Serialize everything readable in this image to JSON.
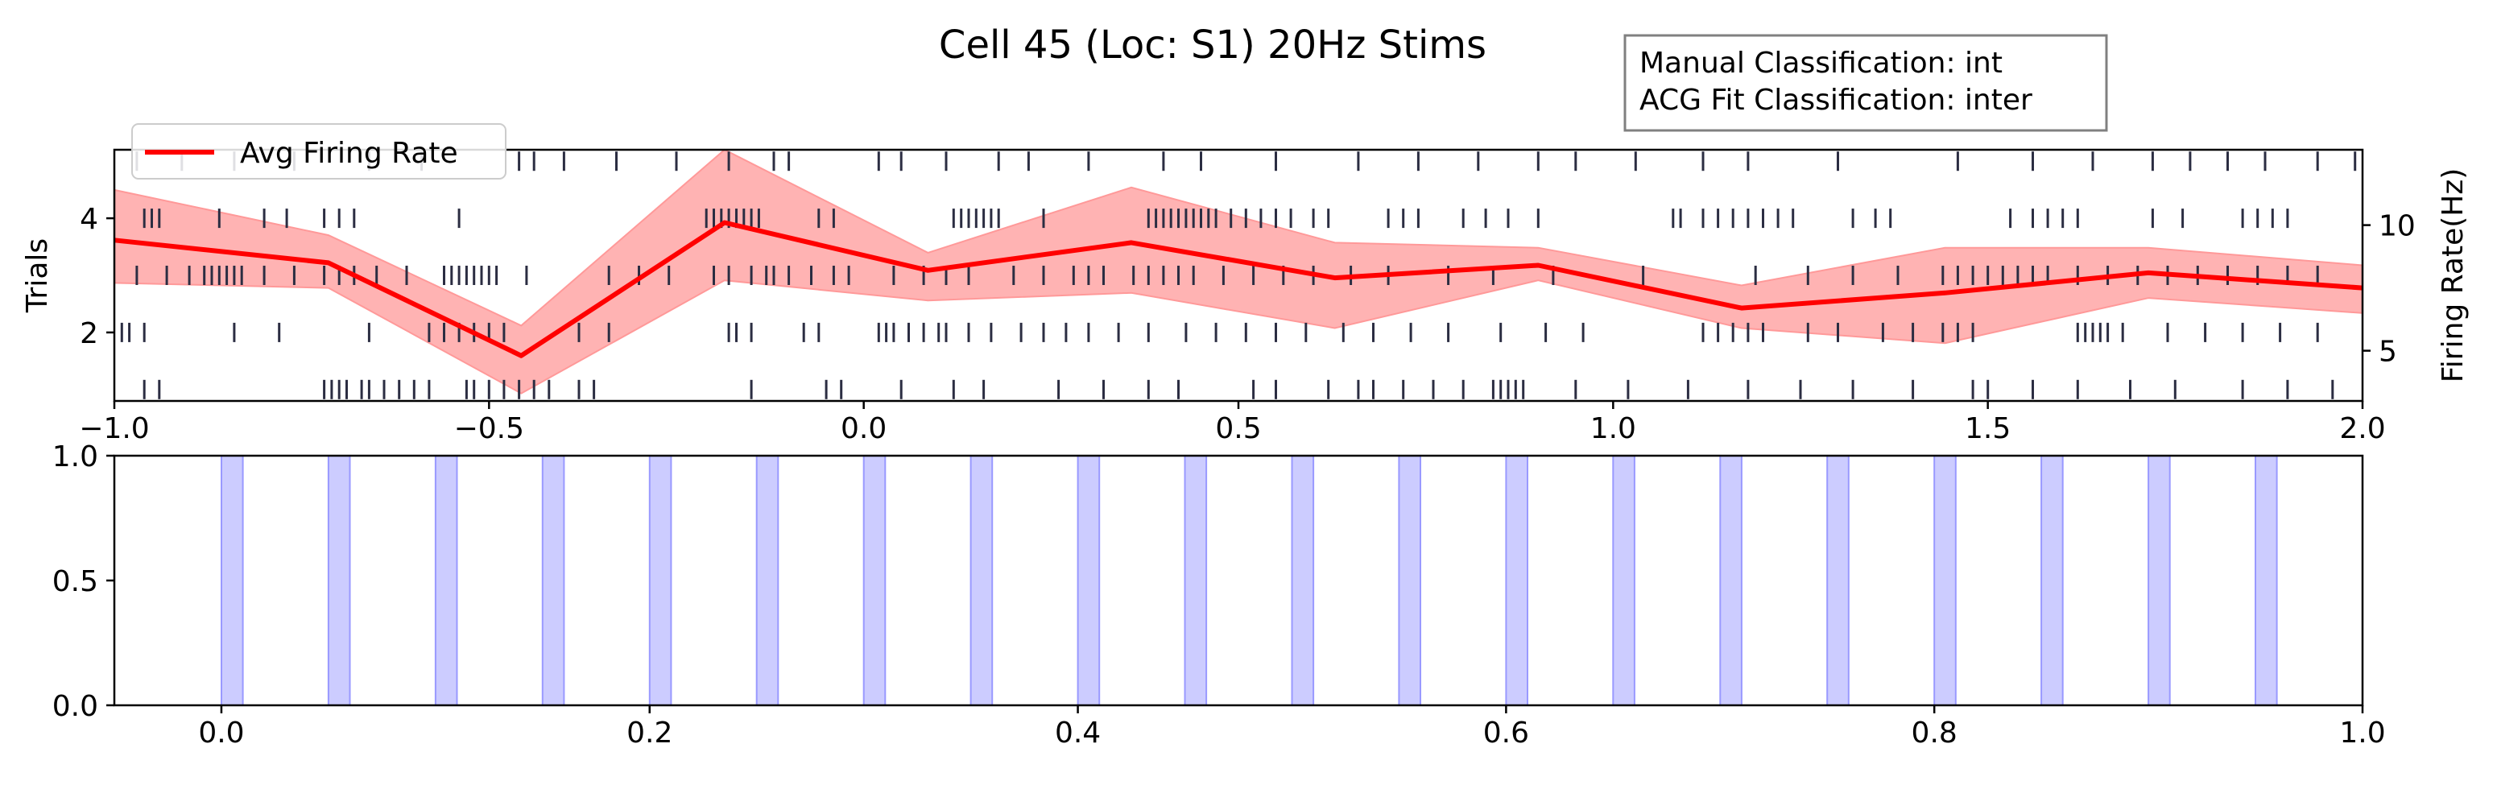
{
  "title": "Cell 45 (Loc: S1) 20Hz Stims",
  "annotation": {
    "lines": [
      "Manual Classification: int",
      "ACG Fit Classification: inter"
    ]
  },
  "chart_data": [
    {
      "type": "raster",
      "xlim": [
        -1.0,
        2.0
      ],
      "ylim": [
        0.8,
        5.2
      ],
      "ylim_right": [
        3.0,
        13.0
      ],
      "xticks": [
        -1.0,
        -0.5,
        0.0,
        0.5,
        1.0,
        1.5,
        2.0
      ],
      "xtick_labels": [
        "−1.0",
        "−0.5",
        "0.0",
        "0.5",
        "1.0",
        "1.5",
        "2.0"
      ],
      "yticks": [
        2,
        4
      ],
      "ytick_labels": [
        "2",
        "4"
      ],
      "yticks_right": [
        5,
        10
      ],
      "ytick_labels_right": [
        "5",
        "10"
      ],
      "ylabel": "Trials",
      "ylabel_right": "Firing Rate(Hz)",
      "legend": {
        "label": "Avg Firing Rate",
        "position": "upper-left"
      },
      "colors": {
        "spike": "#2b2d42",
        "rate": "#ff0000",
        "band": "#ff9999"
      },
      "trials": [
        {
          "trial": 1,
          "spikes": [
            -0.96,
            -0.94,
            -0.72,
            -0.71,
            -0.7,
            -0.69,
            -0.67,
            -0.66,
            -0.64,
            -0.62,
            -0.6,
            -0.58,
            -0.53,
            -0.52,
            -0.5,
            -0.48,
            -0.46,
            -0.44,
            -0.42,
            -0.38,
            -0.36,
            -0.15,
            -0.05,
            -0.03,
            0.05,
            0.12,
            0.16,
            0.26,
            0.32,
            0.38,
            0.42,
            0.52,
            0.55,
            0.62,
            0.66,
            0.68,
            0.72,
            0.76,
            0.8,
            0.84,
            0.85,
            0.86,
            0.87,
            0.88,
            0.95,
            1.02,
            1.1,
            1.18,
            1.25,
            1.32,
            1.4,
            1.48,
            1.5,
            1.56,
            1.62,
            1.69,
            1.75,
            1.84,
            1.9,
            1.96
          ]
        },
        {
          "trial": 2,
          "spikes": [
            -0.99,
            -0.98,
            -0.96,
            -0.84,
            -0.78,
            -0.66,
            -0.58,
            -0.56,
            -0.54,
            -0.52,
            -0.5,
            -0.48,
            -0.38,
            -0.34,
            -0.18,
            -0.17,
            -0.15,
            -0.08,
            -0.06,
            0.02,
            0.03,
            0.04,
            0.06,
            0.08,
            0.1,
            0.11,
            0.14,
            0.17,
            0.21,
            0.24,
            0.27,
            0.3,
            0.34,
            0.38,
            0.43,
            0.47,
            0.51,
            0.55,
            0.59,
            0.64,
            0.68,
            0.73,
            0.78,
            0.85,
            0.91,
            0.96,
            1.12,
            1.14,
            1.16,
            1.18,
            1.2,
            1.26,
            1.3,
            1.36,
            1.4,
            1.44,
            1.46,
            1.48,
            1.62,
            1.63,
            1.64,
            1.65,
            1.66,
            1.68,
            1.74,
            1.79,
            1.84,
            1.89,
            1.94
          ]
        },
        {
          "trial": 3,
          "spikes": [
            -0.97,
            -0.93,
            -0.9,
            -0.88,
            -0.87,
            -0.86,
            -0.85,
            -0.84,
            -0.83,
            -0.8,
            -0.76,
            -0.72,
            -0.7,
            -0.68,
            -0.65,
            -0.61,
            -0.56,
            -0.55,
            -0.54,
            -0.53,
            -0.52,
            -0.51,
            -0.5,
            -0.49,
            -0.45,
            -0.34,
            -0.3,
            -0.26,
            -0.2,
            -0.18,
            -0.15,
            -0.13,
            -0.12,
            -0.1,
            -0.07,
            -0.04,
            -0.02,
            0.04,
            0.08,
            0.11,
            0.14,
            0.2,
            0.24,
            0.28,
            0.3,
            0.32,
            0.36,
            0.38,
            0.4,
            0.42,
            0.44,
            0.48,
            0.52,
            0.56,
            0.6,
            0.65,
            0.7,
            0.78,
            0.84,
            0.92,
            1.04,
            1.19,
            1.26,
            1.32,
            1.38,
            1.44,
            1.46,
            1.48,
            1.5,
            1.52,
            1.54,
            1.56,
            1.58,
            1.62,
            1.66,
            1.7,
            1.74,
            1.78,
            1.82,
            1.86,
            1.9,
            1.94
          ]
        },
        {
          "trial": 4,
          "spikes": [
            -0.96,
            -0.95,
            -0.94,
            -0.86,
            -0.8,
            -0.77,
            -0.72,
            -0.7,
            -0.68,
            -0.54,
            -0.21,
            -0.2,
            -0.19,
            -0.18,
            -0.17,
            -0.16,
            -0.15,
            -0.14,
            -0.06,
            -0.04,
            0.12,
            0.13,
            0.14,
            0.15,
            0.16,
            0.17,
            0.18,
            0.24,
            0.38,
            0.39,
            0.4,
            0.41,
            0.42,
            0.43,
            0.44,
            0.45,
            0.46,
            0.47,
            0.49,
            0.51,
            0.53,
            0.55,
            0.57,
            0.6,
            0.62,
            0.7,
            0.72,
            0.74,
            0.8,
            0.83,
            0.86,
            0.9,
            1.08,
            1.09,
            1.12,
            1.14,
            1.16,
            1.18,
            1.2,
            1.22,
            1.24,
            1.32,
            1.35,
            1.37,
            1.53,
            1.56,
            1.58,
            1.6,
            1.62,
            1.72,
            1.76,
            1.84,
            1.86,
            1.88,
            1.9
          ]
        },
        {
          "trial": 5,
          "spikes": [
            -0.97,
            -0.91,
            -0.84,
            -0.76,
            -0.66,
            -0.59,
            -0.46,
            -0.44,
            -0.4,
            -0.33,
            -0.25,
            -0.18,
            -0.12,
            -0.1,
            0.02,
            0.05,
            0.11,
            0.18,
            0.22,
            0.3,
            0.4,
            0.45,
            0.55,
            0.66,
            0.74,
            0.82,
            0.9,
            0.95,
            1.03,
            1.12,
            1.18,
            1.3,
            1.46,
            1.56,
            1.64,
            1.72,
            1.77,
            1.82,
            1.87,
            1.94,
            1.99
          ]
        }
      ],
      "rate": {
        "x": [
          -1.0,
          -0.7143,
          -0.4571,
          -0.1857,
          0.0857,
          0.3571,
          0.6286,
          0.9,
          1.1714,
          1.4429,
          1.7143,
          2.0
        ],
        "mean": [
          9.4,
          8.5,
          4.8,
          10.1,
          8.2,
          9.3,
          7.9,
          8.4,
          6.7,
          7.3,
          8.1,
          7.5
        ],
        "lower": [
          7.7,
          7.5,
          3.3,
          7.8,
          7.0,
          7.3,
          5.9,
          7.8,
          5.9,
          5.3,
          7.1,
          6.5
        ],
        "upper": [
          11.4,
          9.6,
          6.0,
          13.0,
          8.9,
          11.5,
          9.3,
          9.1,
          7.6,
          9.1,
          9.1,
          8.4
        ]
      }
    },
    {
      "type": "stimulus-spans",
      "xlim": [
        -0.05,
        1.0
      ],
      "ylim": [
        0.0,
        1.0
      ],
      "xticks": [
        0.0,
        0.2,
        0.4,
        0.6,
        0.8,
        1.0
      ],
      "xtick_labels": [
        "0.0",
        "0.2",
        "0.4",
        "0.6",
        "0.8",
        "1.0"
      ],
      "yticks": [
        0.0,
        0.5,
        1.0
      ],
      "ytick_labels": [
        "0.0",
        "0.5",
        "1.0"
      ],
      "color": "#9999ff",
      "stim_width": 0.01,
      "stim_onsets": [
        0.0,
        0.05,
        0.1,
        0.15,
        0.2,
        0.25,
        0.3,
        0.35,
        0.4,
        0.45,
        0.5,
        0.55,
        0.6,
        0.65,
        0.7,
        0.75,
        0.8,
        0.85,
        0.9,
        0.95
      ]
    }
  ]
}
